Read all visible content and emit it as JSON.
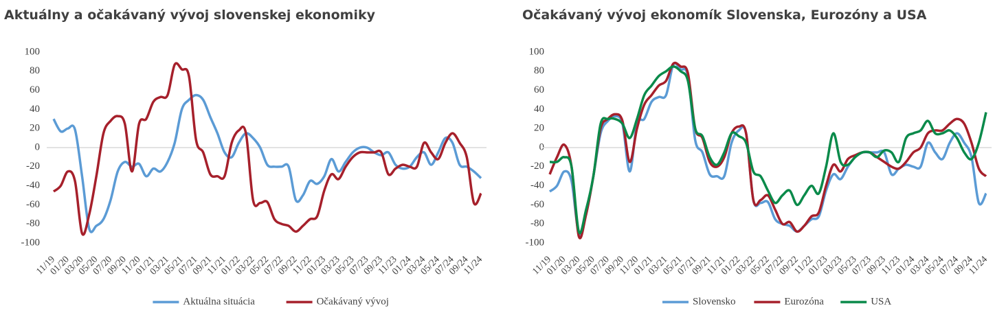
{
  "chart_data": [
    {
      "type": "line",
      "title": "Aktuálny a očakávaný vývoj slovenskej ekonomiky",
      "categories": [
        "11/19",
        null,
        "01/20",
        null,
        "03/20",
        null,
        "05/20",
        null,
        "07/20",
        null,
        "09/20",
        null,
        "11/20",
        null,
        "01/21",
        null,
        "03/21",
        null,
        "05/21",
        null,
        "07/21",
        null,
        "09/21",
        null,
        "11/21",
        null,
        "01/22",
        null,
        "03/22",
        null,
        "05/22",
        null,
        "07/22",
        null,
        "09/22",
        null,
        "11/22",
        null,
        "01/23",
        null,
        "03/23",
        null,
        "05/23",
        null,
        "07/23",
        null,
        "09/23",
        null,
        "11/23",
        null,
        "01/24",
        null,
        "03/24",
        null,
        "05/24",
        null,
        "07/24",
        null,
        "09/24",
        null,
        "11/24"
      ],
      "series": [
        {
          "name": "Aktuálna situácia",
          "color": "#5b9bd5",
          "values": [
            30,
            17,
            20,
            19,
            -30,
            -85,
            -82,
            -75,
            -55,
            -25,
            -15,
            -20,
            -17,
            -30,
            -22,
            -25,
            -15,
            5,
            40,
            50,
            55,
            50,
            32,
            15,
            -5,
            -10,
            5,
            15,
            10,
            0,
            -18,
            -20,
            -20,
            -20,
            -55,
            -50,
            -35,
            -38,
            -30,
            -12,
            -25,
            -15,
            -5,
            0,
            0,
            -5,
            -8,
            -5,
            -18,
            -22,
            -20,
            -10,
            -5,
            -18,
            -5,
            10,
            5,
            -18,
            -20,
            -25,
            -32
          ]
        },
        {
          "name": "Očakávaný vývoj",
          "color": "#a6202b",
          "values": [
            -46,
            -40,
            -25,
            -35,
            -90,
            -70,
            -30,
            15,
            28,
            33,
            25,
            -25,
            25,
            30,
            48,
            53,
            55,
            87,
            82,
            75,
            8,
            -5,
            -28,
            -30,
            -30,
            5,
            18,
            15,
            -55,
            -58,
            -57,
            -75,
            -80,
            -82,
            -88,
            -82,
            -75,
            -72,
            -45,
            -28,
            -33,
            -20,
            -10,
            -5,
            -5,
            -5,
            -5,
            -28,
            -22,
            -18,
            -20,
            -20,
            5,
            -5,
            -12,
            5,
            15,
            5,
            -10,
            -58,
            -48
          ]
        }
      ],
      "ylim": [
        -100,
        100
      ],
      "yticks": [
        -100,
        -80,
        -60,
        -40,
        -20,
        0,
        20,
        40,
        60,
        80,
        100
      ]
    },
    {
      "type": "line",
      "title": "Očakávaný vývoj ekonomík Slovenska, Eurozóny a USA",
      "categories": [
        "11/19",
        null,
        "01/20",
        null,
        "03/20",
        null,
        "05/20",
        null,
        "07/20",
        null,
        "09/20",
        null,
        "11/20",
        null,
        "01/21",
        null,
        "03/21",
        null,
        "05/21",
        null,
        "07/21",
        null,
        "09/21",
        null,
        "11/21",
        null,
        "01/22",
        null,
        "03/22",
        null,
        "05/22",
        null,
        "07/22",
        null,
        "09/22",
        null,
        "11/22",
        null,
        "01/23",
        null,
        "03/23",
        null,
        "05/23",
        null,
        "07/23",
        null,
        "09/23",
        null,
        "11/23",
        null,
        "01/24",
        null,
        "03/24",
        null,
        "05/24",
        null,
        "07/24",
        null,
        "09/24",
        null,
        "11/24"
      ],
      "series": [
        {
          "name": "Slovensko",
          "color": "#5b9bd5",
          "values": [
            -46,
            -40,
            -25,
            -35,
            -90,
            -70,
            -30,
            15,
            28,
            33,
            25,
            -25,
            25,
            30,
            48,
            53,
            55,
            87,
            82,
            75,
            8,
            -5,
            -28,
            -30,
            -30,
            5,
            18,
            15,
            -55,
            -58,
            -57,
            -75,
            -80,
            -82,
            -88,
            -82,
            -75,
            -72,
            -45,
            -28,
            -33,
            -20,
            -10,
            -5,
            -5,
            -5,
            -5,
            -28,
            -22,
            -18,
            -20,
            -20,
            5,
            -5,
            -12,
            5,
            15,
            5,
            -10,
            -58,
            -48
          ]
        },
        {
          "name": "Eurozóna",
          "color": "#a6202b",
          "values": [
            -28,
            -10,
            3,
            -20,
            -93,
            -70,
            -30,
            20,
            30,
            35,
            28,
            -15,
            20,
            45,
            55,
            65,
            70,
            88,
            85,
            78,
            20,
            10,
            -15,
            -20,
            -10,
            15,
            22,
            15,
            -55,
            -55,
            -50,
            -65,
            -80,
            -78,
            -88,
            -82,
            -72,
            -68,
            -40,
            -18,
            -25,
            -12,
            -8,
            -5,
            -5,
            -10,
            -15,
            -20,
            -22,
            -15,
            -5,
            0,
            15,
            18,
            18,
            25,
            30,
            25,
            5,
            -22,
            -30
          ]
        },
        {
          "name": "USA",
          "color": "#0a8a4a",
          "values": [
            -15,
            -15,
            -10,
            -20,
            -88,
            -65,
            -30,
            25,
            30,
            30,
            25,
            10,
            30,
            55,
            65,
            75,
            80,
            85,
            80,
            70,
            20,
            12,
            -10,
            -18,
            -5,
            15,
            12,
            5,
            -25,
            -30,
            -45,
            -58,
            -50,
            -45,
            -60,
            -50,
            -40,
            -48,
            -20,
            15,
            -15,
            -18,
            -10,
            -5,
            -5,
            -10,
            -3,
            -5,
            -15,
            10,
            15,
            18,
            28,
            15,
            15,
            18,
            10,
            -5,
            -12,
            5,
            37
          ]
        }
      ],
      "ylim": [
        -100,
        100
      ],
      "yticks": [
        -100,
        -80,
        -60,
        -40,
        -20,
        0,
        20,
        40,
        60,
        80,
        100
      ]
    }
  ]
}
